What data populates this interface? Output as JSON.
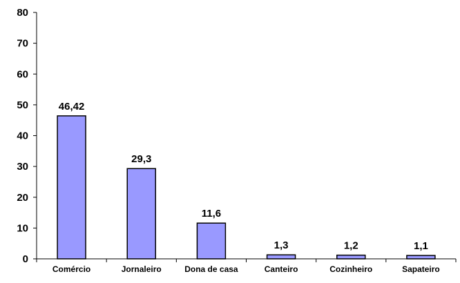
{
  "chart_data": {
    "type": "bar",
    "categories": [
      "Comércio",
      "Jornaleiro",
      "Dona de casa",
      "Canteiro",
      "Cozinheiro",
      "Sapateiro"
    ],
    "values": [
      46.42,
      29.3,
      11.6,
      1.3,
      1.2,
      1.1
    ],
    "data_labels": [
      "46,42",
      "29,3",
      "11,6",
      "1,3",
      "1,2",
      "1,1"
    ],
    "title": "",
    "xlabel": "",
    "ylabel": "",
    "ylim": [
      0,
      80
    ],
    "yticks": [
      "0",
      "10",
      "20",
      "30",
      "40",
      "50",
      "60",
      "70",
      "80"
    ],
    "grid": false,
    "bar_color": "#9999FF"
  }
}
